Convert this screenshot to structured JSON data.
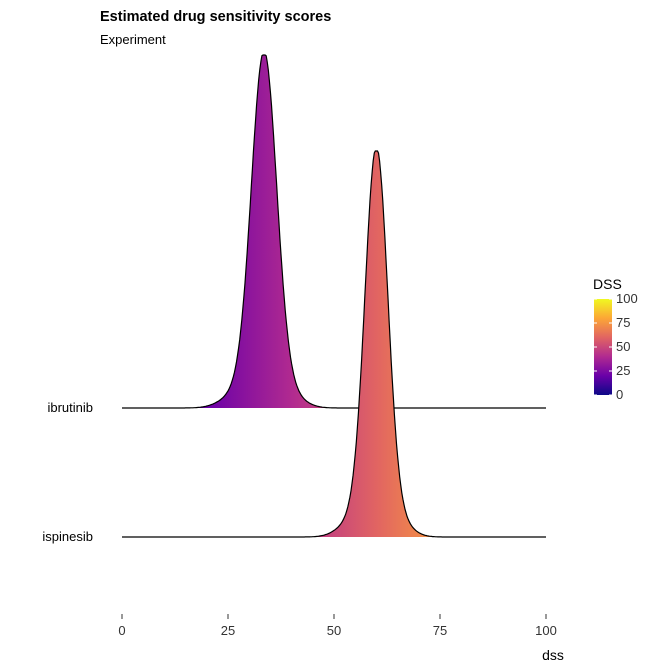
{
  "chart_data": {
    "type": "area",
    "title": "Estimated drug sensitivity scores",
    "subtitle": "Experiment",
    "xlabel": "dss",
    "ylabel": "",
    "xlim": [
      0,
      100
    ],
    "x_ticks": [
      0,
      25,
      50,
      75,
      100
    ],
    "categories": [
      "ibrutinib",
      "ispinesib"
    ],
    "series": [
      {
        "name": "ibrutinib",
        "mean": 33.5,
        "sd": 3.0,
        "range": [
          22,
          45
        ],
        "fill_dss": 33.5
      },
      {
        "name": "ispinesib",
        "mean": 60.0,
        "sd": 2.7,
        "range": [
          48,
          68
        ],
        "fill_dss": 60
      }
    ],
    "legend": {
      "title": "DSS",
      "position": "right",
      "ticks": [
        0,
        25,
        50,
        75,
        100
      ],
      "palette": [
        "#0d0887",
        "#6a00a8",
        "#b12a90",
        "#e16462",
        "#fca636",
        "#f0f921"
      ]
    },
    "grid": false
  }
}
